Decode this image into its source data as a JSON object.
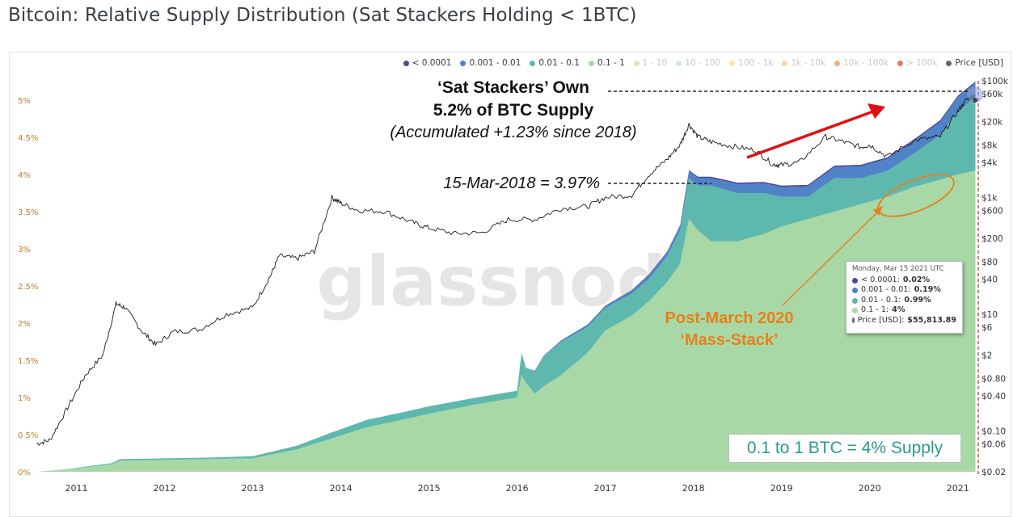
{
  "page": {
    "title": "Bitcoin: Relative Supply Distribution (Sat Stackers Holding < 1BTC)"
  },
  "legend": [
    {
      "label": "< 0.0001",
      "color": "#4a4a9c",
      "active": true
    },
    {
      "label": "0.001 - 0.01",
      "color": "#4f82c6",
      "active": true
    },
    {
      "label": "0.01 - 0.1",
      "color": "#5fb8ae",
      "active": true
    },
    {
      "label": "0.1 - 1",
      "color": "#a8d8a6",
      "active": true
    },
    {
      "label": "1 - 10",
      "color": "#d6ecb0",
      "active": false
    },
    {
      "label": "10 - 100",
      "color": "#cfe9e6",
      "active": false
    },
    {
      "label": "100 - 1k",
      "color": "#fbe7a6",
      "active": false
    },
    {
      "label": "1k - 10k",
      "color": "#f8d7a0",
      "active": false
    },
    {
      "label": "10k - 100k",
      "color": "#f3b07f",
      "active": false
    },
    {
      "label": "> 100k",
      "color": "#e07a5a",
      "active": false
    },
    {
      "label": "Price [USD]",
      "color": "#666666",
      "active": true
    }
  ],
  "annotations": {
    "headline_1": "‘Sat Stackers’ Own",
    "headline_2": "5.2% of BTC Supply",
    "headline_3": "(Accumulated +1.23% since 2018)",
    "mar2018": "15-Mar-2018 = 3.97%",
    "post_march_1": "Post-March 2020",
    "post_march_2": "‘Mass-Stack’",
    "box": "0.1 to 1 BTC = 4% Supply",
    "watermark": "glassnode"
  },
  "tooltip": {
    "date": "Monday, Mar 15 2021 UTC",
    "rows": [
      {
        "label": "< 0.0001: ",
        "value": "0.02%",
        "color": "#4a4a9c"
      },
      {
        "label": "0.001 - 0.01: ",
        "value": "0.19%",
        "color": "#4f82c6"
      },
      {
        "label": "0.01 - 0.1: ",
        "value": "0.99%",
        "color": "#5fb8ae"
      },
      {
        "label": "0.1 - 1: ",
        "value": "4%",
        "color": "#a8d8a6"
      },
      {
        "label": "Price [USD]: ",
        "value": "$55,813.89",
        "color": "#666666"
      }
    ]
  },
  "chart_data": {
    "type": "area",
    "stacked": true,
    "x_ticks": [
      "2011",
      "2012",
      "2013",
      "2014",
      "2015",
      "2016",
      "2017",
      "2018",
      "2019",
      "2020",
      "2021"
    ],
    "y_left_ticks": [
      "0%",
      "0.5%",
      "1%",
      "1.5%",
      "2%",
      "2.5%",
      "3%",
      "3.5%",
      "4%",
      "4.5%",
      "5%"
    ],
    "y_left_range": [
      0,
      5.5
    ],
    "y_right_ticks": [
      "$0.02",
      "$0.06",
      "$0.10",
      "$0.40",
      "$0.80",
      "$2",
      "$6",
      "$10",
      "$40",
      "$80",
      "$200",
      "$600",
      "$1k",
      "$4k",
      "$8k",
      "$20k",
      "$60k",
      "$100k"
    ],
    "y_right_scale": "log",
    "x": [
      2010.55,
      2010.9,
      2011.1,
      2011.4,
      2011.5,
      2012.0,
      2012.5,
      2013.0,
      2013.5,
      2013.9,
      2014.3,
      2014.7,
      2015.0,
      2015.5,
      2016.0,
      2016.05,
      2016.1,
      2016.2,
      2016.3,
      2016.5,
      2016.8,
      2017.0,
      2017.3,
      2017.5,
      2017.7,
      2017.85,
      2017.95,
      2018.05,
      2018.2,
      2018.5,
      2018.8,
      2019.0,
      2019.3,
      2019.6,
      2019.9,
      2020.2,
      2020.5,
      2020.8,
      2021.0,
      2021.2
    ],
    "series": [
      {
        "name": "0.1 - 1",
        "values": [
          0.0,
          0.03,
          0.06,
          0.1,
          0.15,
          0.16,
          0.17,
          0.18,
          0.3,
          0.45,
          0.6,
          0.7,
          0.78,
          0.9,
          1.0,
          1.3,
          1.2,
          1.05,
          1.15,
          1.3,
          1.6,
          1.9,
          2.1,
          2.3,
          2.55,
          2.8,
          3.4,
          3.25,
          3.1,
          3.1,
          3.2,
          3.3,
          3.4,
          3.5,
          3.6,
          3.7,
          3.83,
          3.93,
          4.0,
          4.05
        ]
      },
      {
        "name": "0.01 - 0.1",
        "values": [
          0.0,
          0.005,
          0.01,
          0.015,
          0.02,
          0.02,
          0.02,
          0.03,
          0.05,
          0.08,
          0.1,
          0.1,
          0.1,
          0.09,
          0.09,
          0.3,
          0.2,
          0.3,
          0.4,
          0.45,
          0.35,
          0.3,
          0.3,
          0.3,
          0.35,
          0.45,
          0.55,
          0.6,
          0.75,
          0.65,
          0.55,
          0.4,
          0.3,
          0.45,
          0.35,
          0.35,
          0.45,
          0.6,
          0.85,
          0.99
        ]
      },
      {
        "name": "0.001 - 0.01",
        "values": [
          0.0,
          0.0,
          0.0,
          0.0,
          0.0,
          0.0,
          0.0,
          0.0,
          0.0,
          0.0,
          0.0,
          0.0,
          0.0,
          0.0,
          0.0,
          0.0,
          0.0,
          0.01,
          0.01,
          0.02,
          0.03,
          0.03,
          0.04,
          0.05,
          0.05,
          0.06,
          0.1,
          0.1,
          0.1,
          0.12,
          0.13,
          0.13,
          0.14,
          0.15,
          0.16,
          0.16,
          0.17,
          0.18,
          0.19,
          0.19
        ]
      },
      {
        "name": "< 0.0001",
        "values": [
          0.0,
          0.0,
          0.0,
          0.0,
          0.0,
          0.0,
          0.0,
          0.0,
          0.0,
          0.0,
          0.0,
          0.0,
          0.0,
          0.0,
          0.0,
          0.0,
          0.0,
          0.0,
          0.0,
          0.0,
          0.0,
          0.005,
          0.005,
          0.01,
          0.01,
          0.01,
          0.01,
          0.02,
          0.02,
          0.02,
          0.02,
          0.02,
          0.02,
          0.02,
          0.02,
          0.02,
          0.02,
          0.02,
          0.02,
          0.02
        ]
      }
    ],
    "price": {
      "name": "Price [USD]",
      "x": [
        2010.55,
        2010.7,
        2010.9,
        2011.1,
        2011.3,
        2011.45,
        2011.55,
        2011.75,
        2011.9,
        2012.1,
        2012.4,
        2012.7,
        2013.0,
        2013.2,
        2013.3,
        2013.5,
        2013.7,
        2013.9,
        2014.0,
        2014.2,
        2014.5,
        2014.8,
        2015.0,
        2015.3,
        2015.6,
        2015.9,
        2016.2,
        2016.5,
        2016.8,
        2017.0,
        2017.3,
        2017.5,
        2017.7,
        2017.85,
        2017.95,
        2018.05,
        2018.2,
        2018.45,
        2018.7,
        2018.9,
        2019.0,
        2019.2,
        2019.5,
        2019.7,
        2019.9,
        2020.0,
        2020.2,
        2020.5,
        2020.8,
        2021.0,
        2021.1,
        2021.2
      ],
      "values": [
        0.06,
        0.07,
        0.25,
        0.9,
        2,
        15,
        13,
        5,
        3,
        5,
        5.5,
        10,
        13,
        45,
        100,
        90,
        120,
        1000,
        800,
        600,
        580,
        380,
        300,
        240,
        250,
        420,
        420,
        650,
        700,
        1000,
        1100,
        2500,
        4500,
        8000,
        18000,
        11000,
        9000,
        7500,
        6500,
        3700,
        3600,
        4000,
        11000,
        9000,
        7300,
        8000,
        5000,
        9500,
        11000,
        30000,
        48000,
        56000
      ]
    }
  }
}
